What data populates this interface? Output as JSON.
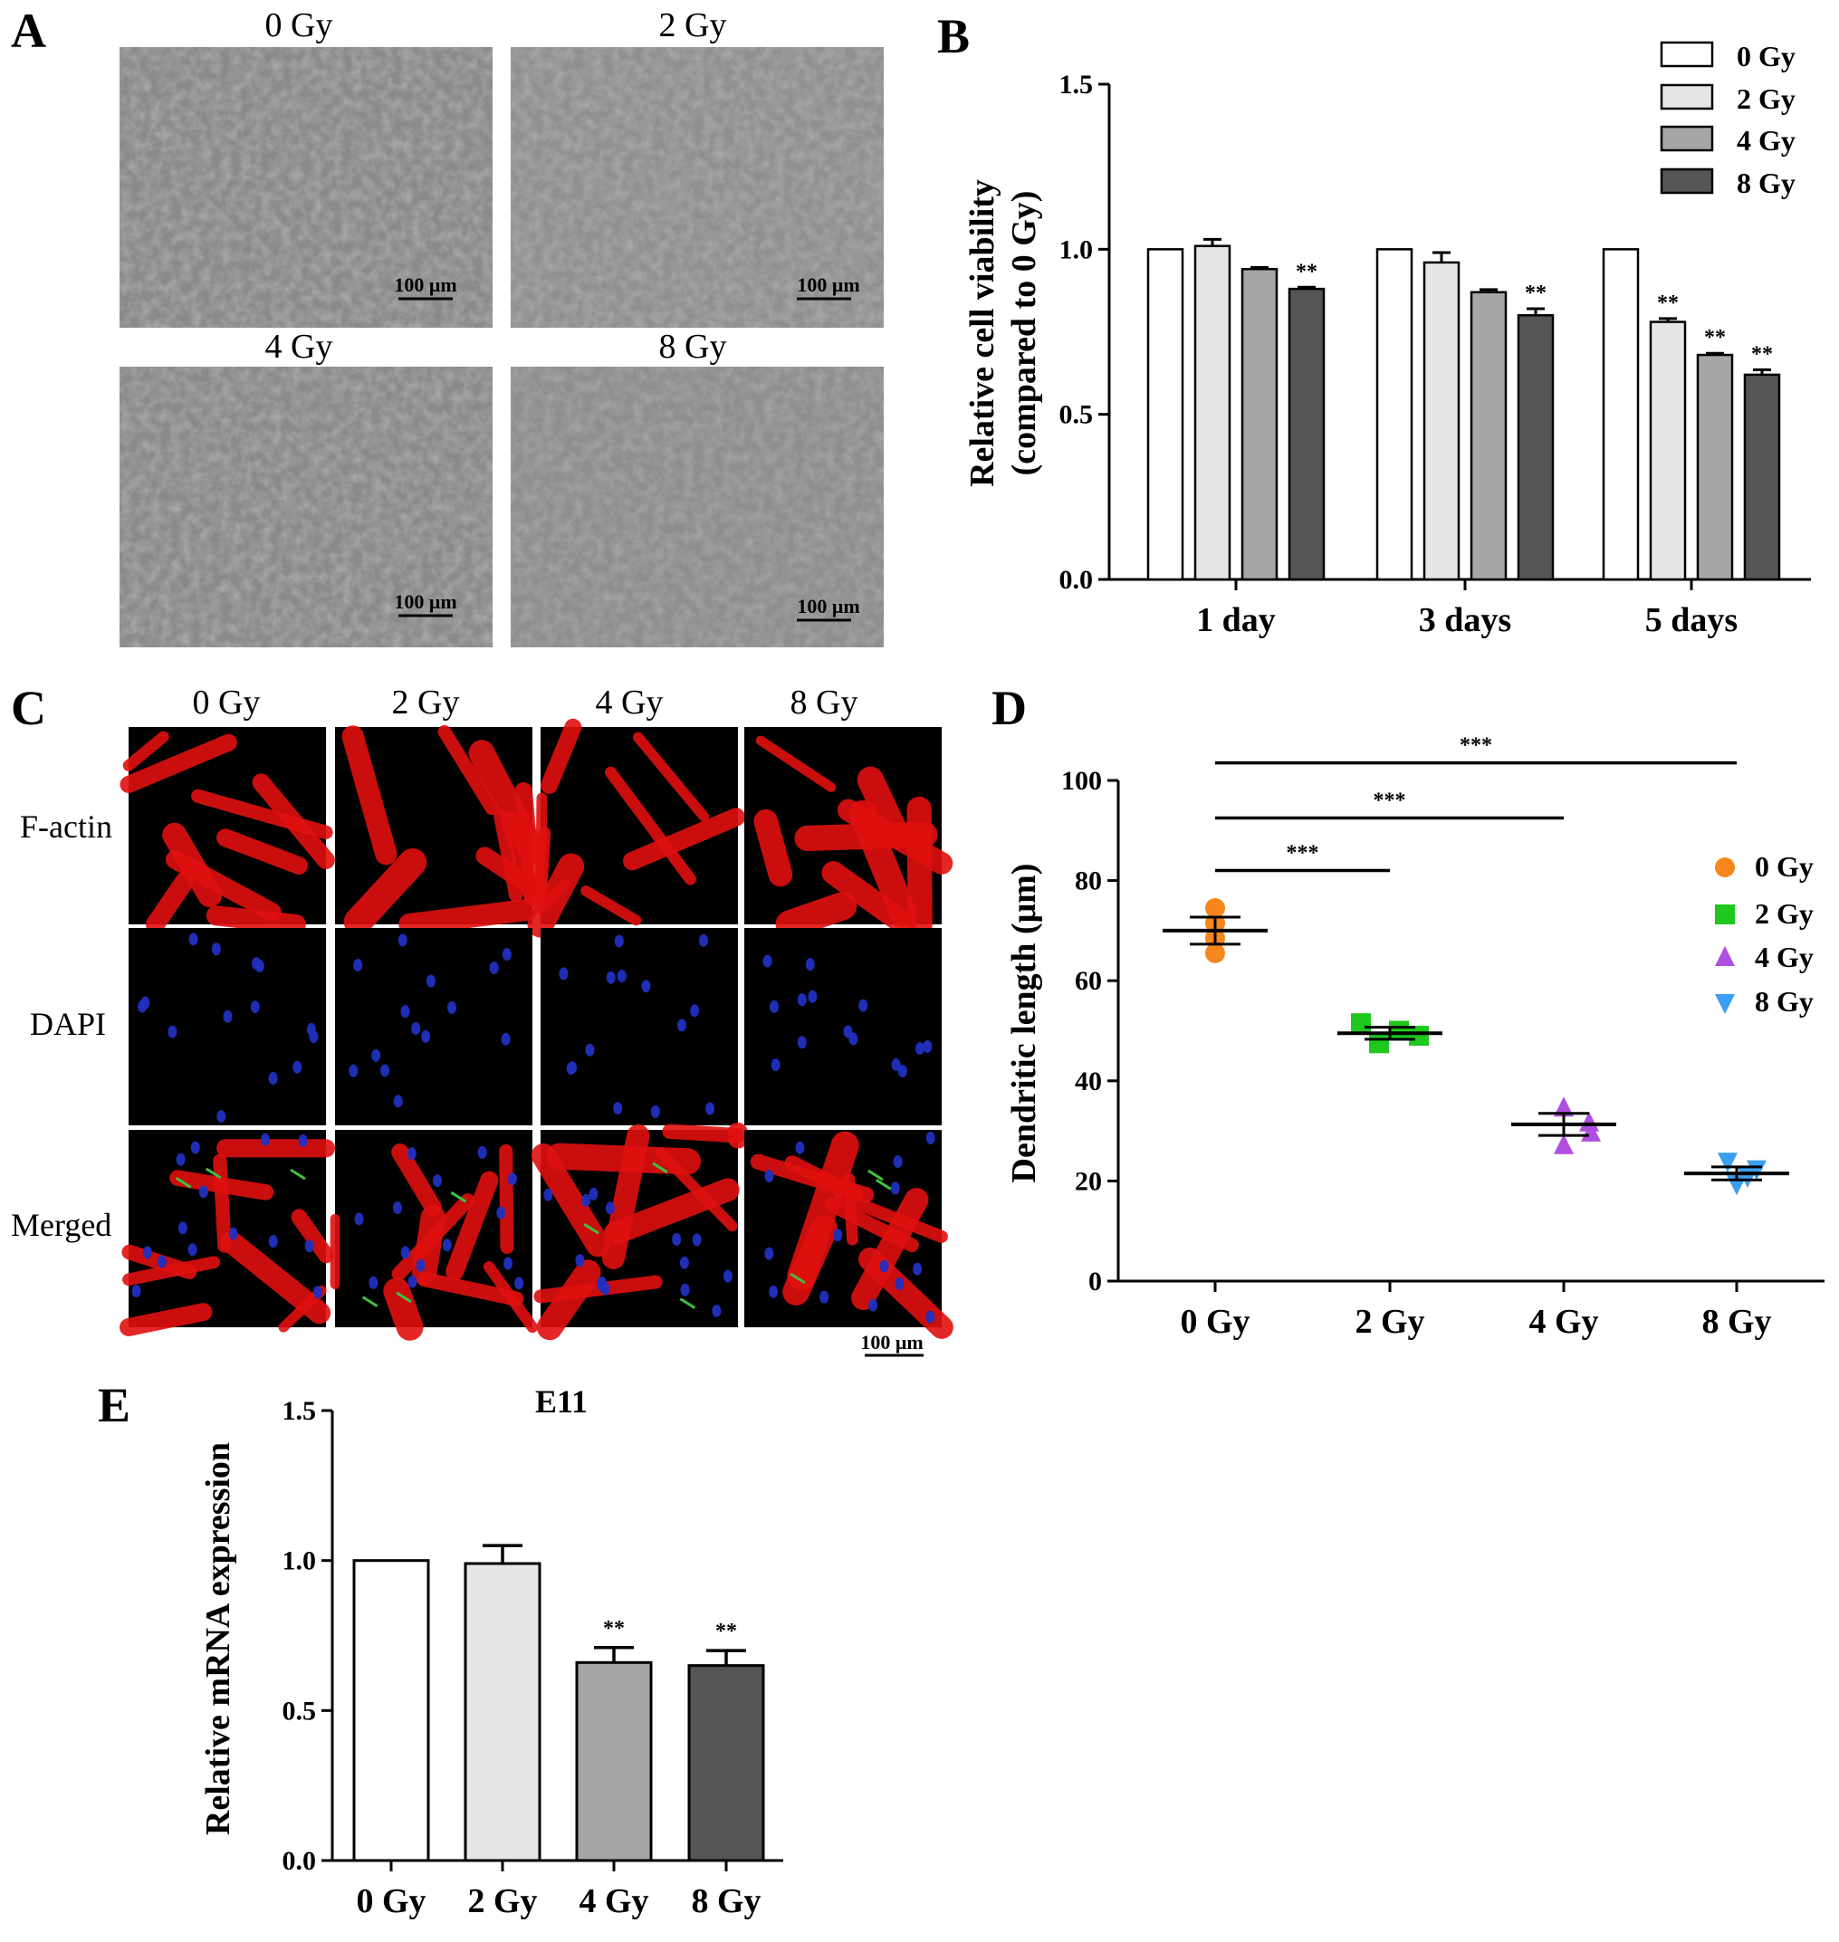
{
  "panel_labels": [
    "A",
    "B",
    "C",
    "D",
    "E"
  ],
  "panelA": {
    "conditions": [
      "0 Gy",
      "2 Gy",
      "4 Gy",
      "8 Gy"
    ],
    "scale_bar": "100 μm",
    "image_color": "#8a8a8a"
  },
  "panelC": {
    "conditions": [
      "0 Gy",
      "2 Gy",
      "4 Gy",
      "8 Gy"
    ],
    "rows": [
      "F-actin",
      "DAPI",
      "Merged"
    ],
    "scale_bar": "100 μm",
    "colors": {
      "factin": "#e01010",
      "dapi": "#2030c0",
      "arrow": "#40c040",
      "background": "#000000"
    }
  },
  "chart_data": [
    {
      "panel": "B",
      "type": "bar",
      "categories": [
        "1 day",
        "3 days",
        "5 days"
      ],
      "series": [
        {
          "name": "0 Gy",
          "values": [
            1.0,
            1.0,
            1.0
          ],
          "errors": [
            0,
            0,
            0
          ],
          "sig": [
            "",
            "",
            ""
          ],
          "color": "#ffffff"
        },
        {
          "name": "2 Gy",
          "values": [
            1.01,
            0.96,
            0.78
          ],
          "errors": [
            0.02,
            0.03,
            0.01
          ],
          "sig": [
            "",
            "",
            "**"
          ],
          "color": "#e6e6e6"
        },
        {
          "name": "4 Gy",
          "values": [
            0.94,
            0.87,
            0.68
          ],
          "errors": [
            0.005,
            0.008,
            0.005
          ],
          "sig": [
            "",
            "",
            "**"
          ],
          "color": "#a6a6a6"
        },
        {
          "name": "8 Gy",
          "values": [
            0.88,
            0.8,
            0.62
          ],
          "errors": [
            0.005,
            0.02,
            0.015
          ],
          "sig": [
            "**",
            "**",
            "**"
          ],
          "color": "#555555"
        }
      ],
      "ylabel": [
        "Relative cell viability",
        "(compared to 0 Gy)"
      ],
      "ylim": [
        0,
        1.5
      ],
      "yticks": [
        "0.0",
        "0.5",
        "1.0",
        "1.5"
      ],
      "legend": "top-right"
    },
    {
      "panel": "D",
      "type": "scatter",
      "categories": [
        "0 Gy",
        "2 Gy",
        "4 Gy",
        "8 Gy"
      ],
      "series": [
        {
          "name": "0 Gy",
          "marker": "circle",
          "color": "#f7861c",
          "points": [
            74.5,
            71.5,
            68.5,
            65.5
          ],
          "mean": 70.0,
          "sem": 2.7
        },
        {
          "name": "2 Gy",
          "marker": "square",
          "color": "#1ec81e",
          "points": [
            51.5,
            50.0,
            49.0,
            47.5
          ],
          "mean": 49.5,
          "sem": 1.2
        },
        {
          "name": "4 Gy",
          "marker": "triangle-up",
          "color": "#b04ee0",
          "points": [
            34.5,
            31.5,
            29.5,
            27.0
          ],
          "mean": 31.3,
          "sem": 2.2
        },
        {
          "name": "8 Gy",
          "marker": "triangle-down",
          "color": "#3c9ef0",
          "points": [
            24.0,
            22.5,
            21.0,
            19.5
          ],
          "mean": 21.5,
          "sem": 1.3
        }
      ],
      "comparisons": [
        {
          "from": "0 Gy",
          "to": "2 Gy",
          "label": "***",
          "y": 82
        },
        {
          "from": "0 Gy",
          "to": "4 Gy",
          "label": "***",
          "y": 92.5
        },
        {
          "from": "0 Gy",
          "to": "8 Gy",
          "label": "***",
          "y": 103.5
        }
      ],
      "ylabel": "Dendritic length (μm)",
      "ylim": [
        0,
        100
      ],
      "yticks": [
        "0",
        "20",
        "40",
        "60",
        "80",
        "100"
      ],
      "legend": "right"
    },
    {
      "panel": "E",
      "type": "bar",
      "title": "E11",
      "categories": [
        "0 Gy",
        "2 Gy",
        "4 Gy",
        "8 Gy"
      ],
      "values": [
        1.0,
        0.99,
        0.66,
        0.65
      ],
      "errors": [
        0,
        0.06,
        0.05,
        0.05
      ],
      "sig": [
        "",
        "",
        "**",
        "**"
      ],
      "colors": [
        "#ffffff",
        "#e6e6e6",
        "#a6a6a6",
        "#555555"
      ],
      "ylabel": "Relative mRNA expression",
      "ylim": [
        0,
        1.5
      ],
      "yticks": [
        "0.0",
        "0.5",
        "1.0",
        "1.5"
      ]
    }
  ]
}
